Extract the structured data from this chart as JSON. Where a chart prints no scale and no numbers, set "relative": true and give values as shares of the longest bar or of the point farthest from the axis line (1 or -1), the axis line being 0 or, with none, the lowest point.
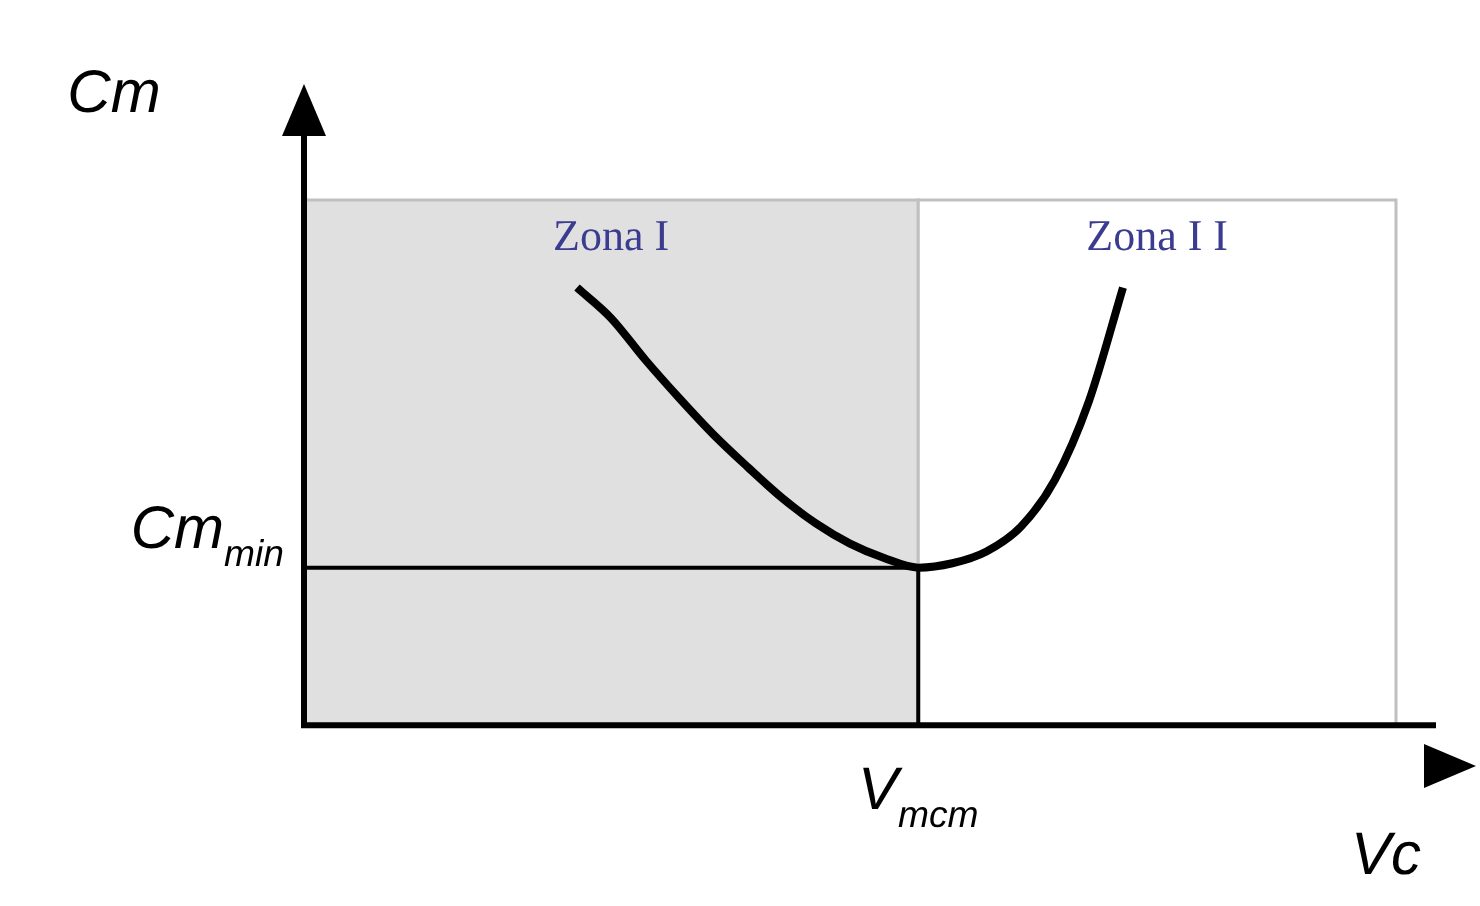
{
  "chart_data": {
    "type": "line",
    "relative": true,
    "xlabel": "Vc",
    "ylabel": "Cm",
    "categories": [
      null,
      null,
      null,
      null,
      null,
      null,
      null,
      null,
      null,
      null,
      null,
      null,
      null,
      null,
      null,
      null,
      null,
      null,
      null,
      null,
      null,
      null,
      null,
      null,
      null,
      null,
      null,
      null,
      null,
      null,
      null,
      null,
      null
    ],
    "legend": false,
    "marker": "none",
    "line_style": "solid",
    "series": [
      {
        "color": "#000000",
        "values": [
          null,
          null,
          null,
          null,
          null,
          null,
          null,
          null,
          1.0,
          0.93,
          0.835,
          0.747,
          0.664,
          0.59,
          0.52,
          0.461,
          0.415,
          0.382,
          0.36,
          0.37,
          0.397,
          0.453,
          0.56,
          0.74,
          1.0,
          null,
          null,
          null,
          null,
          null,
          null,
          null,
          null
        ]
      }
    ],
    "ref_lines": [
      {
        "axis": "y",
        "value": 0.36,
        "label": "Cm$_{min}$",
        "color": "#000000"
      }
    ],
    "annotations": [
      "Zona I",
      "Zona I I",
      "V$_{mcm}$"
    ]
  }
}
